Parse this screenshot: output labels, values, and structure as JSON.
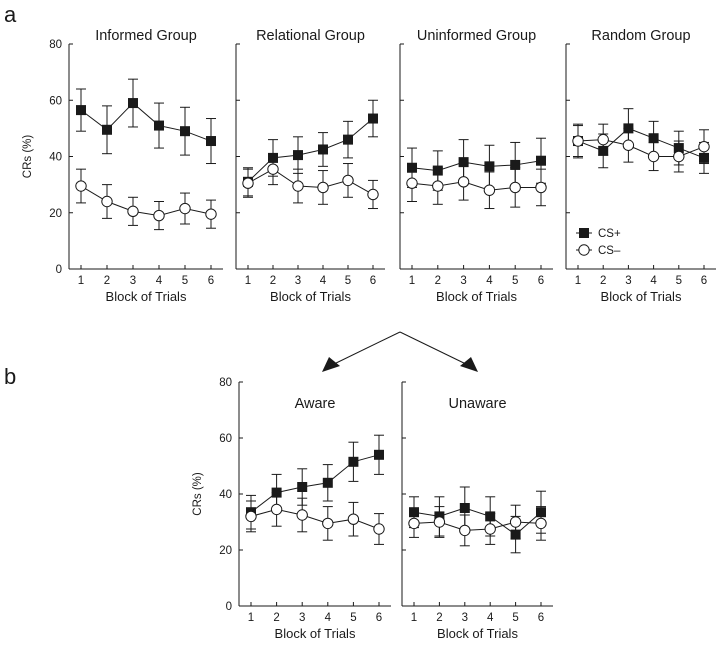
{
  "figure": {
    "panel_labels": [
      "a",
      "b"
    ]
  },
  "chart_data": [
    {
      "type": "line",
      "title": "Informed Group",
      "xlabel": "Block of Trials",
      "ylabel": "CRs (%)",
      "ylim": [
        0,
        80
      ],
      "yticks": [
        0,
        20,
        40,
        60,
        80
      ],
      "x": [
        1,
        2,
        3,
        4,
        5,
        6
      ],
      "series": [
        {
          "name": "CS+",
          "values": [
            56.5,
            49.5,
            59,
            51,
            49,
            45.5
          ],
          "errors": [
            7.5,
            8.5,
            8.5,
            8,
            8.5,
            8
          ]
        },
        {
          "name": "CS−",
          "values": [
            29.5,
            24,
            20.5,
            19,
            21.5,
            19.5
          ],
          "errors": [
            6,
            6,
            5,
            5,
            5.5,
            5
          ]
        }
      ]
    },
    {
      "type": "line",
      "title": "Relational Group",
      "xlabel": "Block of Trials",
      "ylabel": "",
      "ylim": [
        0,
        80
      ],
      "yticks": [
        0,
        20,
        40,
        60,
        80
      ],
      "x": [
        1,
        2,
        3,
        4,
        5,
        6
      ],
      "series": [
        {
          "name": "CS+",
          "values": [
            31,
            39.5,
            40.5,
            42.5,
            46,
            53.5
          ],
          "errors": [
            5,
            6.5,
            6.5,
            6,
            6.5,
            6.5
          ]
        },
        {
          "name": "CS−",
          "values": [
            30.5,
            35.5,
            29.5,
            29,
            31.5,
            26.5
          ],
          "errors": [
            5,
            5.5,
            6,
            6,
            6,
            5
          ]
        }
      ]
    },
    {
      "type": "line",
      "title": "Uninformed Group",
      "xlabel": "Block of Trials",
      "ylabel": "",
      "ylim": [
        0,
        80
      ],
      "yticks": [
        0,
        20,
        40,
        60,
        80
      ],
      "x": [
        1,
        2,
        3,
        4,
        5,
        6
      ],
      "series": [
        {
          "name": "CS+",
          "values": [
            36,
            35,
            38,
            36.5,
            37,
            38.5
          ],
          "errors": [
            7,
            7,
            8,
            7.5,
            8,
            8
          ]
        },
        {
          "name": "CS−",
          "values": [
            30.5,
            29.5,
            31,
            28,
            29,
            29
          ],
          "errors": [
            6.5,
            6.5,
            6.5,
            6.5,
            7,
            6.5
          ]
        }
      ]
    },
    {
      "type": "line",
      "title": "Random Group",
      "xlabel": "Block of Trials",
      "ylabel": "",
      "ylim": [
        0,
        80
      ],
      "yticks": [
        0,
        20,
        40,
        60,
        80
      ],
      "x": [
        1,
        2,
        3,
        4,
        5,
        6
      ],
      "series": [
        {
          "name": "CS+",
          "values": [
            45.5,
            42,
            50,
            46.5,
            43,
            39.5
          ],
          "errors": [
            6,
            6,
            7,
            6,
            6,
            5.5
          ]
        },
        {
          "name": "CS−",
          "values": [
            45.5,
            46,
            44,
            40,
            40,
            43.5
          ],
          "errors": [
            5.5,
            5.5,
            6,
            5,
            5.5,
            6
          ]
        }
      ],
      "legend": {
        "placement": "bottom-left",
        "entries": [
          "CS+",
          "CS–"
        ]
      }
    },
    {
      "type": "line",
      "title": "Aware",
      "xlabel": "Block of Trials",
      "ylabel": "CRs (%)",
      "ylim": [
        0,
        80
      ],
      "yticks": [
        0,
        20,
        40,
        60,
        80
      ],
      "x": [
        1,
        2,
        3,
        4,
        5,
        6
      ],
      "series": [
        {
          "name": "CS+",
          "values": [
            33.5,
            40.5,
            42.5,
            44,
            51.5,
            54
          ],
          "errors": [
            6,
            6.5,
            6.5,
            6.5,
            7,
            7
          ]
        },
        {
          "name": "CS−",
          "values": [
            32,
            34.5,
            32.5,
            29.5,
            31,
            27.5
          ],
          "errors": [
            5.5,
            6,
            6,
            6,
            6,
            5.5
          ]
        }
      ]
    },
    {
      "type": "line",
      "title": "Unaware",
      "xlabel": "Block of Trials",
      "ylabel": "",
      "ylim": [
        0,
        80
      ],
      "yticks": [
        0,
        20,
        40,
        60,
        80
      ],
      "x": [
        1,
        2,
        3,
        4,
        5,
        6
      ],
      "series": [
        {
          "name": "CS+",
          "values": [
            33.5,
            32,
            35,
            32,
            25.5,
            33.5
          ],
          "errors": [
            5.5,
            7,
            7.5,
            7,
            6.5,
            7.5
          ]
        },
        {
          "name": "CS−",
          "values": [
            29.5,
            30,
            27,
            27.5,
            30,
            29.5
          ],
          "errors": [
            5,
            5.5,
            5.5,
            5.5,
            6,
            6
          ]
        }
      ]
    }
  ]
}
